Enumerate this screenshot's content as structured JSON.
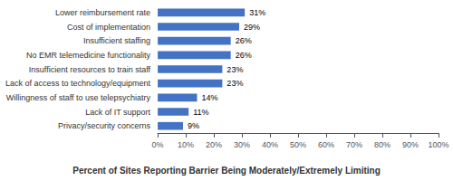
{
  "chart_data": {
    "type": "bar",
    "orientation": "horizontal",
    "xlabel": "Percent of Sites Reporting Barrier Being Moderately/Extremely Limiting",
    "categories": [
      "Privacy/security concerns",
      "Lack of IT support",
      "Willingness of staff to use telepsychiatry",
      "Lack of access to technology/equipment",
      "Insufficient resources to train staff",
      "No EMR telemedicine functionality",
      "Insufficient staffing",
      "Cost of implementation",
      "Lower reimbursement rate"
    ],
    "values": [
      9,
      11,
      14,
      23,
      23,
      26,
      26,
      29,
      31
    ],
    "value_labels": [
      "9%",
      "11%",
      "14%",
      "23%",
      "23%",
      "26%",
      "26%",
      "29%",
      "31%"
    ],
    "color": "#4472C4",
    "xlim": [
      0,
      100
    ],
    "xticks": [
      {
        "value": 0,
        "label": "0%"
      },
      {
        "value": 10,
        "label": "10%"
      },
      {
        "value": 20,
        "label": "20%"
      },
      {
        "value": 30,
        "label": "30%"
      },
      {
        "value": 40,
        "label": "40%"
      },
      {
        "value": 50,
        "label": "50%"
      },
      {
        "value": 60,
        "label": "60%"
      },
      {
        "value": 70,
        "label": "70%"
      },
      {
        "value": 80,
        "label": "80%"
      },
      {
        "value": 90,
        "label": "90%"
      },
      {
        "value": 100,
        "label": "100%"
      }
    ],
    "grid": false,
    "data_labels": true
  }
}
